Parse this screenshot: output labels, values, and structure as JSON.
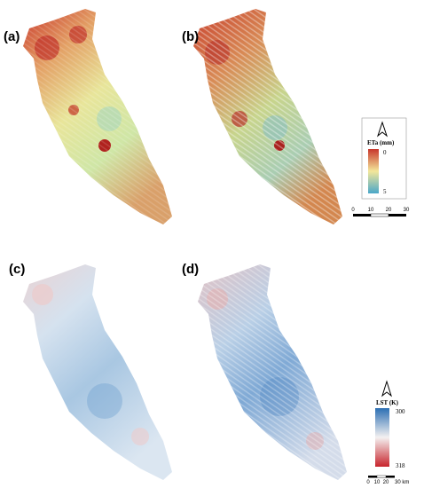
{
  "panels": [
    {
      "label": "(a)"
    },
    {
      "label": "(b)"
    },
    {
      "label": "(c)"
    },
    {
      "label": "(d)"
    }
  ],
  "legends": [
    {
      "title": "ETa (mm)",
      "top_label": 0,
      "bottom_label": 5,
      "scale_labels": [
        "0",
        "10",
        "20",
        "30"
      ]
    },
    {
      "title": "LST (K)",
      "top_label": 300,
      "bottom_label": 318,
      "scale_labels": [
        "0",
        "10",
        "20",
        "30 km"
      ]
    }
  ]
}
